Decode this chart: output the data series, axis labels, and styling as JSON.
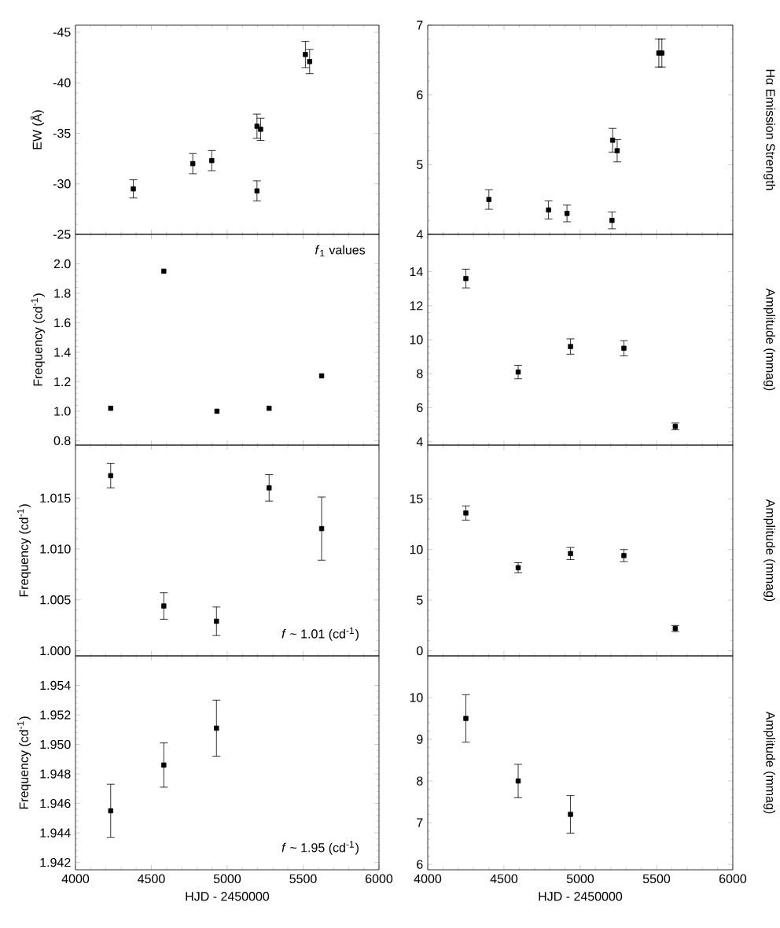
{
  "chart_data": [
    {
      "type": "scatter",
      "ylabel": "EW (Å)",
      "xlim": [
        4000,
        6000
      ],
      "xticks": [
        4000,
        4500,
        5000,
        5500,
        6000
      ],
      "ylim": [
        -25,
        -45.7
      ],
      "yticks": [
        -45,
        -40,
        -35,
        -30,
        -25
      ],
      "tick_labels": "y",
      "marker": "square",
      "color": "#000000",
      "x": [
        4381,
        4773,
        4898,
        5196,
        5220,
        5196,
        5515,
        5543
      ],
      "values": [
        -29.5,
        -32.0,
        -32.3,
        -35.7,
        -35.4,
        -29.3,
        -42.8,
        -42.1
      ],
      "errors": [
        0.9,
        1.0,
        1.0,
        1.2,
        1.1,
        1.0,
        1.3,
        1.2
      ]
    },
    {
      "type": "scatter",
      "ylabel": "Hα Emission Strength",
      "xlim": [
        4000,
        6000
      ],
      "xticks": [
        4000,
        4500,
        5000,
        5500,
        6000
      ],
      "ylim": [
        4,
        7
      ],
      "yticks": [
        4,
        5,
        6,
        7
      ],
      "tick_labels": "y",
      "marker": "square",
      "color": "#000000",
      "x": [
        4401,
        4792,
        4913,
        5208,
        5212,
        5242,
        5515,
        5535
      ],
      "values": [
        4.5,
        4.35,
        4.3,
        4.2,
        5.35,
        5.2,
        6.6,
        6.6
      ],
      "errors": [
        0.14,
        0.13,
        0.12,
        0.12,
        0.17,
        0.16,
        0.2,
        0.2
      ]
    },
    {
      "type": "scatter",
      "ylabel": "Frequency (cd$^{-1}$)",
      "annotations": [
        "*f*$_{1}$ values"
      ],
      "xlim": [
        4000,
        6000
      ],
      "xticks": [
        4000,
        4500,
        5000,
        5500,
        6000
      ],
      "ylim": [
        0.77,
        2.2
      ],
      "yticks": [
        0.8,
        {
          "value": 1.0,
          "label": "1.0"
        },
        1.2,
        1.4,
        1.6,
        1.8,
        {
          "value": 2.0,
          "label": "2.0"
        }
      ],
      "tick_labels": "y",
      "marker": "square",
      "color": "#000000",
      "x": [
        4232,
        4582,
        4932,
        5276,
        5622
      ],
      "values": [
        1.02,
        1.95,
        1.0,
        1.02,
        1.24
      ]
    },
    {
      "type": "scatter",
      "ylabel": "Amplitude (mmag)",
      "xlim": [
        4000,
        6000
      ],
      "xticks": [
        4000,
        4500,
        5000,
        5500,
        6000
      ],
      "ylim": [
        3.8,
        16.2
      ],
      "yticks": [
        4,
        6,
        8,
        10,
        12,
        14
      ],
      "tick_labels": "y",
      "marker": "square",
      "color": "#000000",
      "x": [
        4250,
        4593,
        4936,
        5286,
        5623
      ],
      "values": [
        13.6,
        8.1,
        9.6,
        9.5,
        4.9
      ],
      "errors": [
        0.55,
        0.4,
        0.45,
        0.45,
        0.2
      ]
    },
    {
      "type": "scatter",
      "ylabel": "Frequency (cd$^{-1}$)",
      "annotations": [
        "*f* ~ 1.01 (cd$^{-1}$)"
      ],
      "xlim": [
        4000,
        6000
      ],
      "xticks": [
        4000,
        4500,
        5000,
        5500,
        6000
      ],
      "ylim": [
        0.9995,
        1.0202
      ],
      "yticks": [
        {
          "value": 1.0,
          "label": "1.000"
        },
        1.005,
        {
          "value": 1.01,
          "label": "1.010"
        },
        1.015
      ],
      "tick_labels": "y",
      "marker": "square",
      "color": "#000000",
      "x": [
        4232,
        4582,
        4929,
        5276,
        5622
      ],
      "values": [
        1.0172,
        1.0044,
        1.0029,
        1.016,
        1.012
      ],
      "errors": [
        0.0012,
        0.0013,
        0.0014,
        0.0013,
        0.0031
      ]
    },
    {
      "type": "scatter",
      "ylabel": "Amplitude (mmag)",
      "xlim": [
        4000,
        6000
      ],
      "xticks": [
        4000,
        4500,
        5000,
        5500,
        6000
      ],
      "ylim": [
        -0.5,
        20.3
      ],
      "yticks": [
        0,
        5,
        10,
        15
      ],
      "tick_labels": "y",
      "marker": "square",
      "color": "#000000",
      "x": [
        4250,
        4593,
        4936,
        5286,
        5623
      ],
      "values": [
        13.6,
        8.2,
        9.6,
        9.4,
        2.2
      ],
      "errors": [
        0.7,
        0.5,
        0.6,
        0.6,
        0.3
      ]
    },
    {
      "type": "scatter",
      "ylabel": "Frequency (cd$^{-1}$)",
      "xlabel": "HJD - 2450000",
      "annotations": [
        "*f* ~ 1.95 (cd$^{-1}$)"
      ],
      "xlim": [
        4000,
        6000
      ],
      "xticks": [
        4000,
        4500,
        5000,
        5500,
        6000
      ],
      "ylim": [
        1.9415,
        1.956
      ],
      "yticks": [
        1.942,
        1.944,
        1.946,
        1.948,
        {
          "value": 1.95,
          "label": "1.950"
        },
        1.952,
        1.954
      ],
      "marker": "square",
      "color": "#000000",
      "x": [
        4232,
        4582,
        4929
      ],
      "values": [
        1.9455,
        1.9486,
        1.9511
      ],
      "errors": [
        0.0018,
        0.0015,
        0.0019
      ]
    },
    {
      "type": "scatter",
      "ylabel": "Amplitude (mmag)",
      "xlabel": "HJD - 2450000",
      "xlim": [
        4000,
        6000
      ],
      "xticks": [
        4000,
        4500,
        5000,
        5500,
        6000
      ],
      "ylim": [
        5.87,
        11.0
      ],
      "yticks": [
        6,
        7,
        8,
        9,
        10
      ],
      "marker": "square",
      "color": "#000000",
      "x": [
        4250,
        4593,
        4936
      ],
      "values": [
        9.5,
        8.0,
        7.2
      ],
      "errors": [
        0.57,
        0.4,
        0.45
      ]
    }
  ]
}
